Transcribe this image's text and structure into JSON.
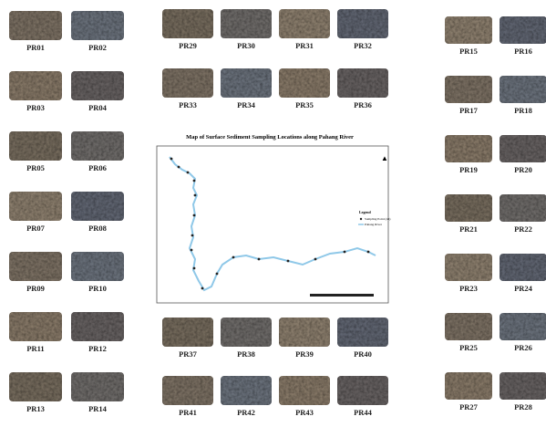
{
  "map": {
    "title": "Map of Surface Sediment Sampling Locations along Pahang River",
    "legend": {
      "title": "Legend",
      "items": [
        "Sampling Point (44)",
        "Pahang River"
      ]
    }
  },
  "samples": [
    "PR01",
    "PR02",
    "PR03",
    "PR04",
    "PR05",
    "PR06",
    "PR07",
    "PR08",
    "PR09",
    "PR10",
    "PR11",
    "PR12",
    "PR13",
    "PR14",
    "PR15",
    "PR16",
    "PR17",
    "PR18",
    "PR19",
    "PR20",
    "PR21",
    "PR22",
    "PR23",
    "PR24",
    "PR25",
    "PR26",
    "PR27",
    "PR28",
    "PR29",
    "PR30",
    "PR31",
    "PR32",
    "PR33",
    "PR34",
    "PR35",
    "PR36",
    "PR37",
    "PR38",
    "PR39",
    "PR40",
    "PR41",
    "PR42",
    "PR43",
    "PR44"
  ]
}
